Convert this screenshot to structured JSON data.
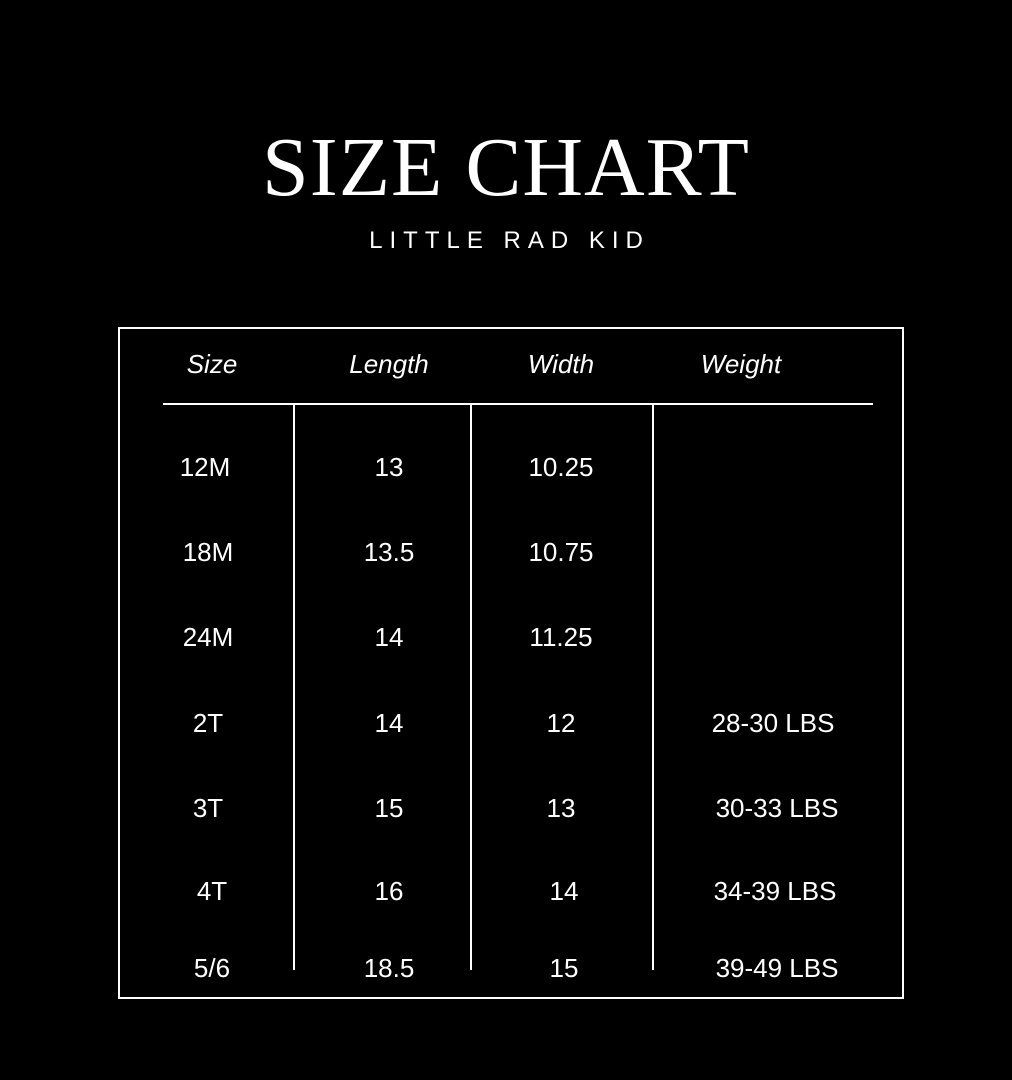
{
  "title": "SIZE CHART",
  "subtitle": "LITTLE RAD KID",
  "table": {
    "headers": [
      "Size",
      "Length",
      "Width",
      "Weight"
    ],
    "rows": [
      [
        "12M",
        "13",
        "10.25",
        ""
      ],
      [
        "18M",
        "13.5",
        "10.75",
        ""
      ],
      [
        "24M",
        "14",
        "11.25",
        ""
      ],
      [
        "2T",
        "14",
        "12",
        "28-30 LBS"
      ],
      [
        "3T",
        "15",
        "13",
        "30-33 LBS"
      ],
      [
        "4T",
        "16",
        "14",
        "34-39 LBS"
      ],
      [
        "5/6",
        "18.5",
        "15",
        "39-49 LBS"
      ]
    ]
  },
  "colors": {
    "background": "#000000",
    "text": "#ffffff",
    "lines": "#ffffff"
  }
}
